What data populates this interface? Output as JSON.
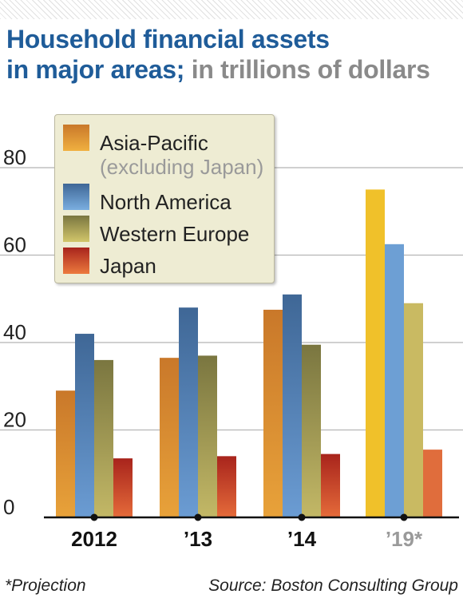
{
  "header": {
    "title": "Household financial assets\nin major areas; ",
    "subtitle": "in trillions of dollars"
  },
  "footer": {
    "note": "*Projection",
    "source": "Source: Boston Consulting Group"
  },
  "chart_data": {
    "type": "bar",
    "title": "Household financial assets in major areas; in trillions of dollars",
    "xlabel": "",
    "ylabel": "",
    "ylim": [
      0,
      80
    ],
    "yticks": [
      0,
      20,
      40,
      60,
      80
    ],
    "categories": [
      "2012",
      "’13",
      "’14",
      "’19*"
    ],
    "projected_category": "’19*",
    "grid": true,
    "legend_position": "top-left",
    "series": [
      {
        "name": "Asia-Pacific",
        "note": "(excluding Japan)",
        "values": [
          29,
          36.5,
          47.5,
          75
        ],
        "color": "#e8a23a",
        "color_dark": "#c9782a",
        "color_projection": "#f0c12a"
      },
      {
        "name": "North America",
        "values": [
          42,
          48,
          51,
          62.5
        ],
        "color": "#6b9cd3",
        "color_dark": "#3f6796",
        "color_projection": "#6d9fd4"
      },
      {
        "name": "Western Europe",
        "values": [
          36,
          37,
          39.5,
          49
        ],
        "color": "#c3b866",
        "color_dark": "#7a7640",
        "color_projection": "#c9ba62"
      },
      {
        "name": "Japan",
        "values": [
          13.5,
          14,
          14.5,
          15.5
        ],
        "color": "#e56b3a",
        "color_dark": "#a8241c",
        "color_projection": "#e06d3c"
      }
    ]
  }
}
